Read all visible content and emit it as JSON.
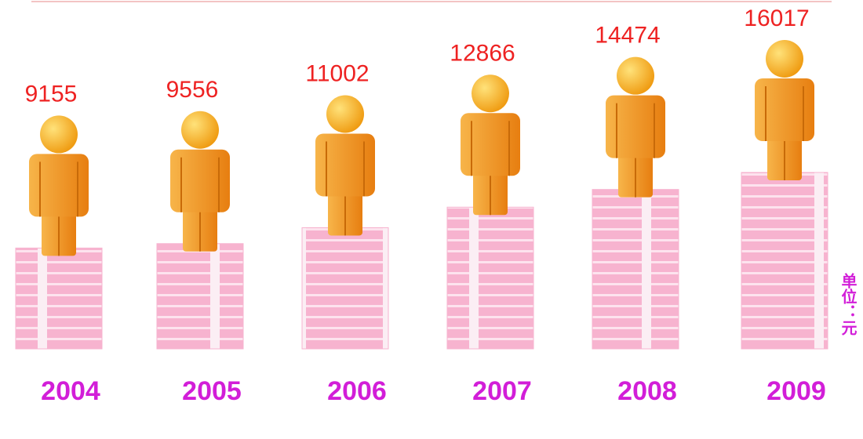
{
  "chart_data": {
    "type": "pictogram",
    "categories": [
      "2004",
      "2005",
      "2006",
      "2007",
      "2008",
      "2009"
    ],
    "values": [
      9155,
      9556,
      11002,
      12866,
      14474,
      16017
    ],
    "unit_label": "单位：元",
    "color": "#f7b3cf",
    "figure_color": "#f29a1c",
    "value_label_color": "#ee2222",
    "category_label_color": "#d21ed8"
  }
}
